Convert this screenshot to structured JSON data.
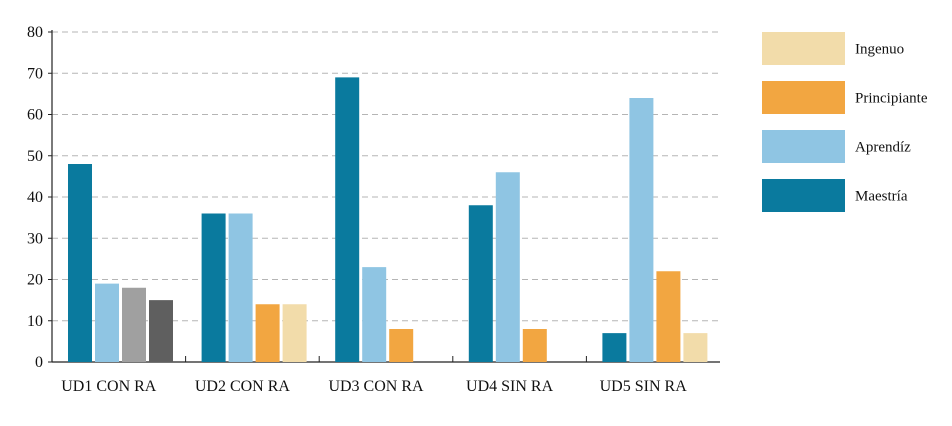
{
  "chart_data": {
    "type": "bar",
    "categories": [
      "UD1 CON RA",
      "UD2 CON RA",
      "UD3 CON RA",
      "UD4 SIN RA",
      "UD5 SIN RA"
    ],
    "ylim": [
      0,
      80
    ],
    "yticks": [
      0,
      10,
      20,
      30,
      40,
      50,
      60,
      70,
      80
    ],
    "grid": true,
    "legend_position": "right",
    "legend": [
      {
        "label": "Ingenuo",
        "color": "#f2dcaa"
      },
      {
        "label": "Principiante",
        "color": "#f2a641"
      },
      {
        "label": "Aprendíz",
        "color": "#8fc5e3"
      },
      {
        "label": "Maestría",
        "color": "#0a7a9e"
      }
    ],
    "groups": [
      {
        "category": "UD1 CON RA",
        "bars": [
          {
            "value": 48,
            "color": "#0a7a9e"
          },
          {
            "value": 19,
            "color": "#8fc5e3"
          },
          {
            "value": 18,
            "color": "#a0a0a0"
          },
          {
            "value": 15,
            "color": "#5f5f5f"
          }
        ]
      },
      {
        "category": "UD2 CON RA",
        "bars": [
          {
            "value": 36,
            "color": "#0a7a9e"
          },
          {
            "value": 36,
            "color": "#8fc5e3"
          },
          {
            "value": 14,
            "color": "#f2a641"
          },
          {
            "value": 14,
            "color": "#f2dcaa"
          }
        ]
      },
      {
        "category": "UD3 CON RA",
        "bars": [
          {
            "value": 69,
            "color": "#0a7a9e"
          },
          {
            "value": 23,
            "color": "#8fc5e3"
          },
          {
            "value": 8,
            "color": "#f2a641"
          }
        ]
      },
      {
        "category": "UD4 SIN RA",
        "bars": [
          {
            "value": 38,
            "color": "#0a7a9e"
          },
          {
            "value": 46,
            "color": "#8fc5e3"
          },
          {
            "value": 8,
            "color": "#f2a641"
          }
        ]
      },
      {
        "category": "UD5 SIN RA",
        "bars": [
          {
            "value": 7,
            "color": "#0a7a9e"
          },
          {
            "value": 64,
            "color": "#8fc5e3"
          },
          {
            "value": 22,
            "color": "#f2a641"
          },
          {
            "value": 7,
            "color": "#f2dcaa"
          }
        ]
      }
    ]
  }
}
